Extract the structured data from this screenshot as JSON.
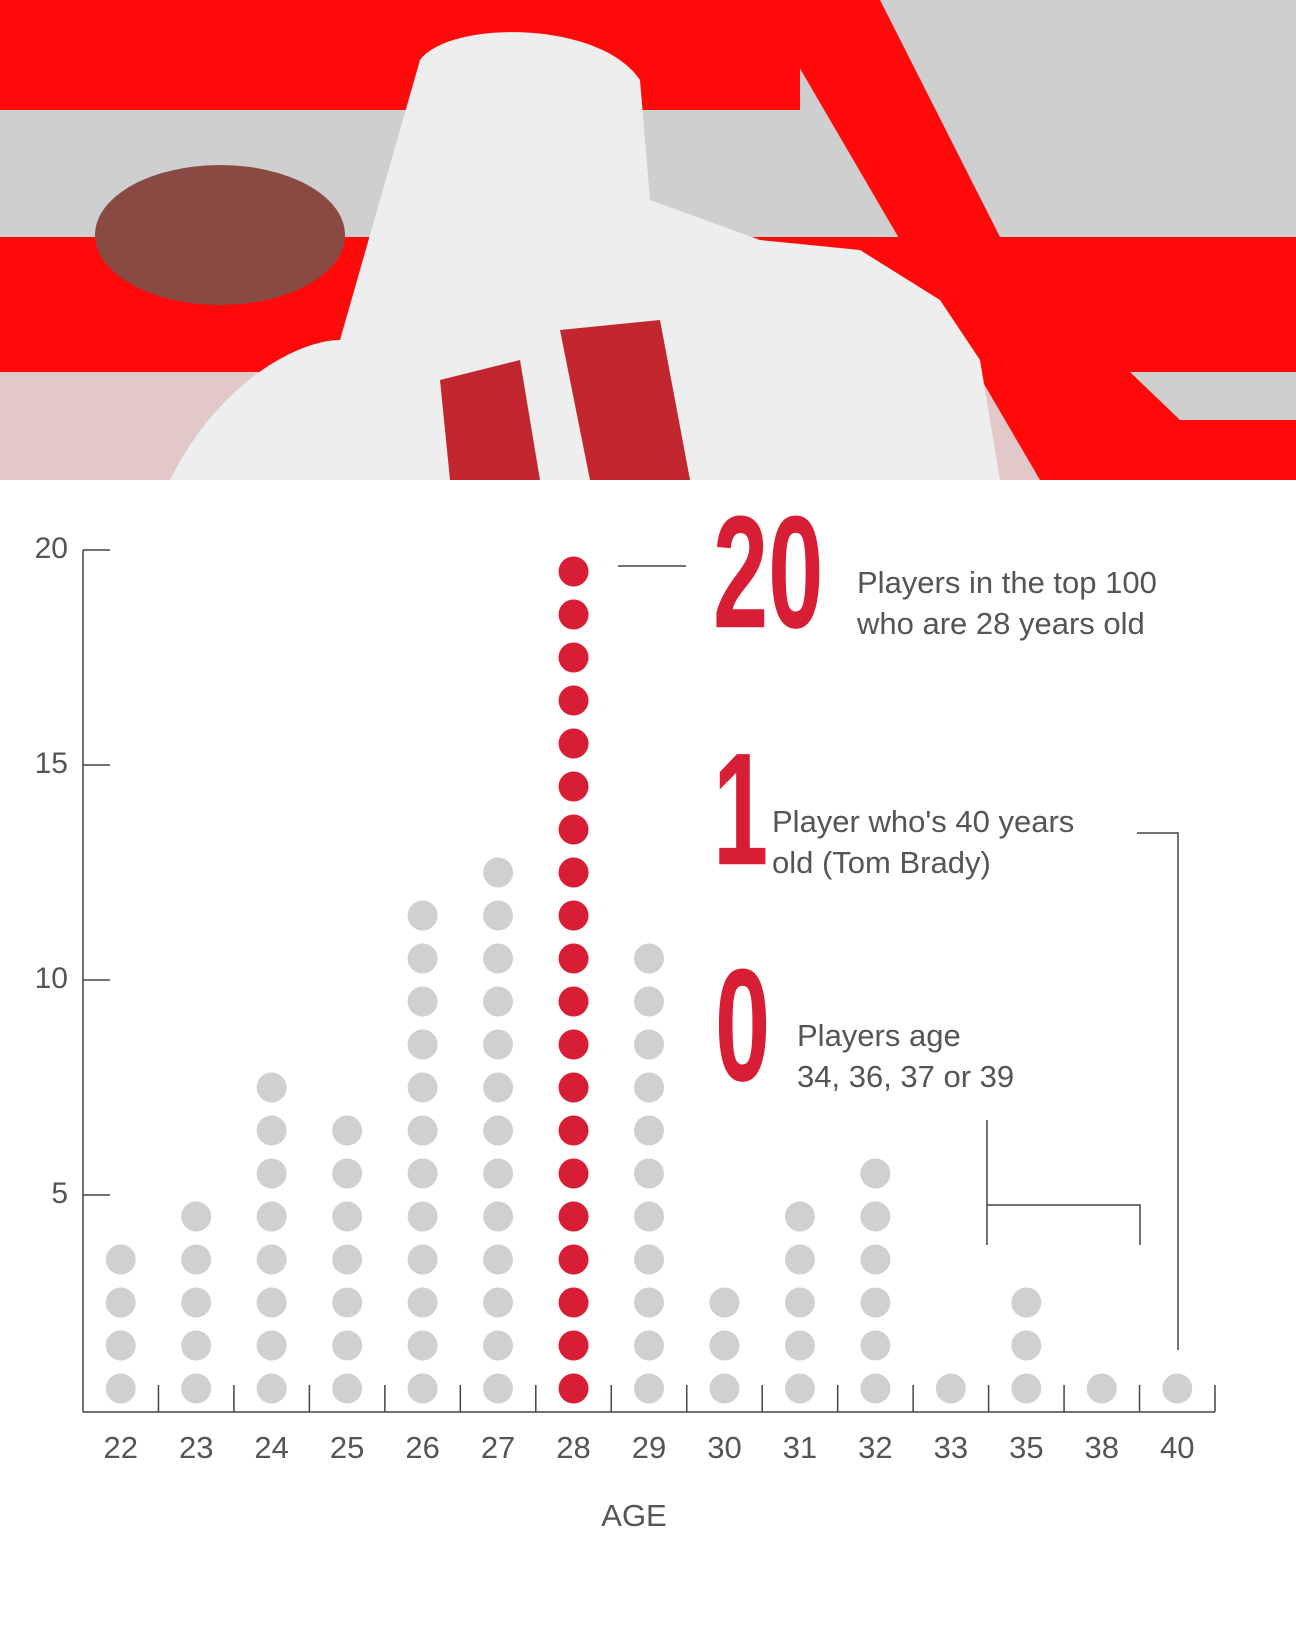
{
  "chart_data": {
    "type": "dot",
    "x_label": "AGE",
    "categories": [
      22,
      23,
      24,
      25,
      26,
      27,
      28,
      29,
      30,
      31,
      32,
      33,
      35,
      38,
      40
    ],
    "values": [
      4,
      5,
      8,
      7,
      12,
      13,
      20,
      11,
      3,
      5,
      6,
      1,
      3,
      1,
      1
    ],
    "colors": [
      "#d0d0d0",
      "#d0d0d0",
      "#d0d0d0",
      "#d0d0d0",
      "#d0d0d0",
      "#d0d0d0",
      "#d81e34",
      "#d0d0d0",
      "#d0d0d0",
      "#d0d0d0",
      "#d0d0d0",
      "#d0d0d0",
      "#d0d0d0",
      "#d0d0d0",
      "#d0d0d0"
    ],
    "ylim": [
      0,
      20
    ],
    "yticks": [
      5,
      10,
      15,
      20
    ],
    "annotations": [
      {
        "value": 20,
        "lines": [
          "Players in the top 100",
          "who are 28 years old"
        ]
      },
      {
        "value": 1,
        "lines": [
          "Player who's 40 years",
          "old (Tom Brady)"
        ]
      },
      {
        "value": 0,
        "lines": [
          "Players age",
          "34, 36, 37 or 39"
        ]
      }
    ]
  }
}
